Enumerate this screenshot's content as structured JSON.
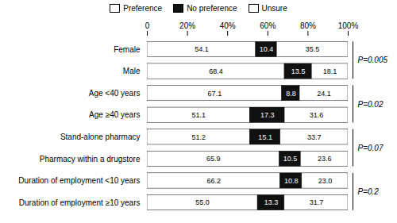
{
  "chart_data": {
    "type": "bar",
    "orientation": "horizontal",
    "stacked": true,
    "data_labels": true,
    "categories": [
      "Female",
      "Male",
      "Age <40 years",
      "Age ≥40 years",
      "Stand-alone pharmacy",
      "Pharmacy within a drugstore",
      "Duration of employment <10 years",
      "Duration of employment ≥10 years"
    ],
    "series": [
      {
        "name": "Preference",
        "color": "#ffffff",
        "values": [
          54.1,
          68.4,
          67.1,
          51.1,
          51.2,
          65.9,
          66.2,
          55.0
        ],
        "value_labels": [
          "54.1",
          "68.4",
          "67.1",
          "51.1",
          "51.2",
          "65.9",
          "66.2",
          "55.0"
        ]
      },
      {
        "name": "No preference",
        "color": "#111111",
        "values": [
          10.4,
          13.5,
          8.8,
          17.3,
          15.1,
          10.5,
          10.8,
          13.3
        ],
        "value_labels": [
          "10.4",
          "13.5",
          "8.8",
          "17.3",
          "15.1",
          "10.5",
          "10.8",
          "13.3"
        ]
      },
      {
        "name": "Unsure",
        "color": "#ffffff",
        "values": [
          35.5,
          18.1,
          24.1,
          31.6,
          33.7,
          23.6,
          23.0,
          31.7
        ],
        "value_labels": [
          "35.5",
          "18.1",
          "24.1",
          "31.6",
          "33.7",
          "23.6",
          "23.0",
          "31.7"
        ]
      }
    ],
    "xlim": [
      0,
      100
    ],
    "xticks": [
      0,
      {
        "value": 20,
        "label": "20%"
      },
      {
        "value": 40,
        "label": "40%"
      },
      {
        "value": 60,
        "label": "60%"
      },
      {
        "value": 80,
        "label": "80%"
      },
      {
        "value": 100,
        "label": "100%"
      }
    ],
    "annotations": [
      {
        "text": "P=0.005",
        "categories": [
          "Female",
          "Male"
        ]
      },
      {
        "text": "P=0.02",
        "categories": [
          "Age <40 years",
          "Age ≥40 years"
        ]
      },
      {
        "text": "P=0.07",
        "categories": [
          "Stand-alone pharmacy",
          "Pharmacy within a drugstore"
        ]
      },
      {
        "text": "P=0.2",
        "categories": [
          "Duration of employment <10 years",
          "Duration of employment ≥10 years"
        ]
      }
    ],
    "legend": "top",
    "grid": false
  }
}
